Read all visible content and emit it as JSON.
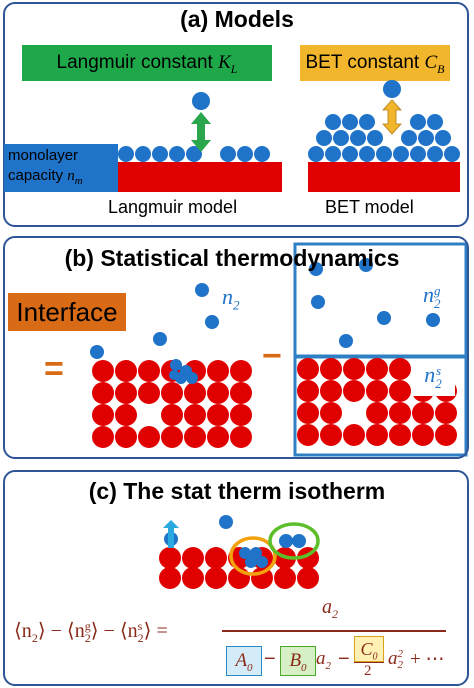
{
  "colors": {
    "frame": "#2f5597",
    "substrate": "#e00000",
    "molecule": "#1f73c8",
    "langmuir_box": "#1fa84a",
    "bet_box": "#f2b62d",
    "interface_box": "#d96a16",
    "arrow_green": "#2aa64d",
    "arrow_yellow": "#f2b62d",
    "arrow_cyan": "#2aa8e0",
    "circle_green": "#5cbf2a",
    "circle_orange": "#f2a20d",
    "a0_box": "#d4ecf7",
    "b0_box": "#d6efc4",
    "c0_box": "#fff1b3"
  },
  "panel_a": {
    "title": "(a) Models",
    "langmuir_constant": "Langmuir constant",
    "langmuir_symbol": "K",
    "langmuir_sub": "L",
    "bet_constant": "BET constant",
    "bet_symbol": "C",
    "bet_sub": "B",
    "monolayer_line1": "monolayer",
    "monolayer_line2": "capacity",
    "monolayer_symbol": "n",
    "monolayer_sub": "m",
    "langmuir_model": "Langmuir model",
    "bet_model": "BET model"
  },
  "panel_b": {
    "title": "(b) Statistical thermodynamics",
    "interface": "Interface",
    "n2_symbol": "n",
    "n2_sub": "2",
    "n2g_sub": "2",
    "n2g_sup": "g",
    "n2s_sub": "2",
    "n2s_sup": "s",
    "equals": "=",
    "minus": "−"
  },
  "panel_c": {
    "title": "(c) The stat therm isotherm",
    "eq_lhs1": "⟨n",
    "eq_lhs1_sub": "2",
    "eq_lhs1_close": "⟩",
    "eq_minus": "−",
    "eq_lhs2": "⟨n",
    "eq_lhs2_sub": "2",
    "eq_lhs2_sup": "g",
    "eq_lhs3": "⟨n",
    "eq_lhs3_sub": "2",
    "eq_lhs3_sup": "s",
    "eq_equals": "=",
    "numerator": "a",
    "numerator_sub": "2",
    "A0": "A",
    "A0_sub": "0",
    "B0": "B",
    "B0_sub": "0",
    "B0_term": "a",
    "B0_term_sub": "2",
    "C0": "C",
    "C0_sub": "0",
    "C0_den": "2",
    "C0_term": "a",
    "C0_term_sub": "2",
    "C0_term_sup": "2",
    "tail": "+ ⋯"
  }
}
